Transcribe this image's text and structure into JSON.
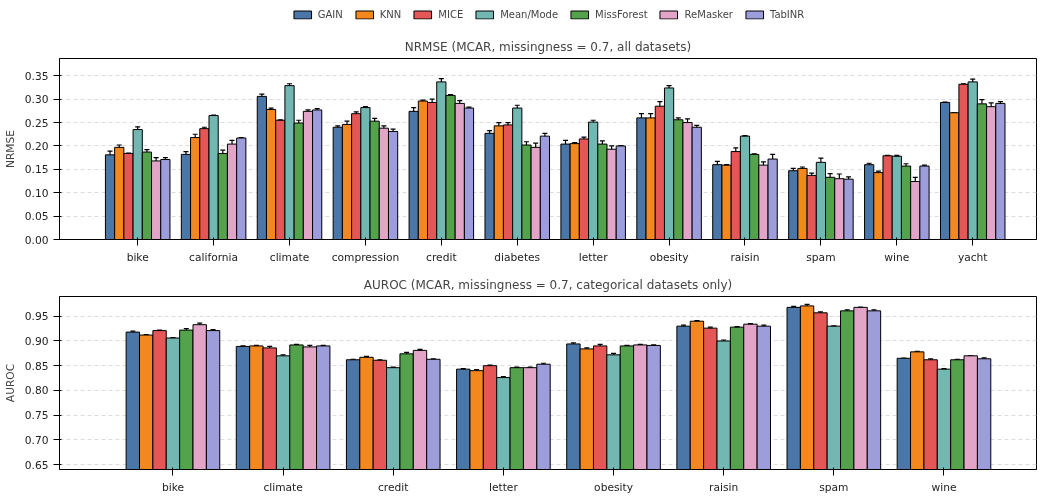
{
  "chart_data": [
    {
      "type": "bar",
      "title": "NRMSE (MCAR, missingness = 0.7, all datasets)",
      "ylabel": "NRMSE",
      "categories": [
        "bike",
        "california",
        "climate",
        "compression",
        "credit",
        "diabetes",
        "letter",
        "obesity",
        "raisin",
        "spam",
        "wine",
        "yacht"
      ],
      "ylim": [
        0,
        0.387
      ],
      "yticks": [
        {
          "value": 0,
          "label": "0.00"
        },
        {
          "value": 0.05,
          "label": "0.05"
        },
        {
          "value": 0.1,
          "label": "0.10"
        },
        {
          "value": 0.15,
          "label": "0.15"
        },
        {
          "value": 0.2,
          "label": "0.20"
        },
        {
          "value": 0.25,
          "label": "0.25"
        },
        {
          "value": 0.3,
          "label": "0.30"
        },
        {
          "value": 0.35,
          "label": "0.35"
        }
      ],
      "grid": "y",
      "legend": "top",
      "series": [
        {
          "name": "GAIN",
          "color": "#4a76a8",
          "values": [
            0.181,
            0.182,
            0.306,
            0.24,
            0.274,
            0.227,
            0.204,
            0.26,
            0.16,
            0.147,
            0.16,
            0.293
          ],
          "errors": [
            0.008,
            0.006,
            0.005,
            0.003,
            0.008,
            0.006,
            0.008,
            0.009,
            0.007,
            0.005,
            0.003,
            0.001
          ]
        },
        {
          "name": "KNN",
          "color": "#f5871f",
          "values": [
            0.197,
            0.218,
            0.278,
            0.246,
            0.296,
            0.243,
            0.205,
            0.26,
            0.159,
            0.152,
            0.143,
            0.271
          ],
          "errors": [
            0.005,
            0.007,
            0.003,
            0.007,
            0.002,
            0.007,
            0.002,
            0.009,
            0.001,
            0.003,
            0.003,
            0
          ]
        },
        {
          "name": "MICE",
          "color": "#e45756",
          "values": [
            0.184,
            0.237,
            0.255,
            0.269,
            0.293,
            0.245,
            0.215,
            0.285,
            0.188,
            0.137,
            0.179,
            0.332
          ],
          "errors": [
            0.001,
            0.003,
            0.001,
            0.004,
            0.007,
            0.005,
            0.004,
            0.01,
            0.008,
            0.005,
            0.001,
            0.001
          ]
        },
        {
          "name": "Mean/Mode",
          "color": "#72b7b2",
          "values": [
            0.235,
            0.265,
            0.329,
            0.282,
            0.337,
            0.281,
            0.251,
            0.324,
            0.221,
            0.165,
            0.178,
            0.337
          ],
          "errors": [
            0.006,
            0.001,
            0.004,
            0.002,
            0.007,
            0.006,
            0.004,
            0.005,
            0.001,
            0.009,
            0.002,
            0.006
          ]
        },
        {
          "name": "MissForest",
          "color": "#54a24b",
          "values": [
            0.187,
            0.184,
            0.249,
            0.253,
            0.308,
            0.202,
            0.204,
            0.256,
            0.182,
            0.133,
            0.157,
            0.29
          ],
          "errors": [
            0.005,
            0.007,
            0.006,
            0.006,
            0.002,
            0.007,
            0.007,
            0.004,
            0.001,
            0.008,
            0.005,
            0.009
          ]
        },
        {
          "name": "ReMasker",
          "color": "#e2a5c8",
          "values": [
            0.168,
            0.204,
            0.274,
            0.238,
            0.291,
            0.197,
            0.193,
            0.25,
            0.159,
            0.13,
            0.124,
            0.284
          ],
          "errors": [
            0.007,
            0.008,
            0.003,
            0.005,
            0.006,
            0.009,
            0.007,
            0.008,
            0.007,
            0.01,
            0.009,
            0.008
          ]
        },
        {
          "name": "TabINR",
          "color": "#9d9ddc",
          "values": [
            0.171,
            0.217,
            0.277,
            0.231,
            0.281,
            0.221,
            0.2,
            0.24,
            0.172,
            0.129,
            0.157,
            0.291
          ],
          "errors": [
            0.004,
            0.001,
            0.003,
            0.005,
            0.002,
            0.006,
            0.001,
            0.004,
            0.01,
            0.005,
            0.002,
            0.004
          ]
        }
      ]
    },
    {
      "type": "bar",
      "title": "AUROC (MCAR, missingness = 0.7, categorical datasets only)",
      "ylabel": "AUROC",
      "categories": [
        "bike",
        "climate",
        "credit",
        "letter",
        "obesity",
        "raisin",
        "spam",
        "wine"
      ],
      "ylim": [
        0.64,
        0.99
      ],
      "yticks": [
        0.65,
        {
          "value": 0.7,
          "label": "0.70"
        },
        0.75,
        {
          "value": 0.8,
          "label": "0.80"
        },
        0.85,
        {
          "value": 0.9,
          "label": "0.90"
        },
        0.95
      ],
      "grid": "y",
      "series": [
        {
          "color": "#4a76a8",
          "values": [
            0.918,
            0.889,
            0.862,
            0.843,
            0.894,
            0.93,
            0.968,
            0.865
          ],
          "errors": [
            0.002,
            0.001,
            0.001,
            0.001,
            0.002,
            0.002,
            0.002,
            0
          ]
        },
        {
          "color": "#f5871f",
          "values": [
            0.912,
            0.89,
            0.867,
            0.84,
            0.884,
            0.94,
            0.971,
            0.878
          ],
          "errors": [
            0.001,
            0.001,
            0.002,
            0.002,
            0.002,
            0.001,
            0.003,
            0.001
          ]
        },
        {
          "color": "#e45756",
          "values": [
            0.921,
            0.886,
            0.861,
            0.85,
            0.89,
            0.926,
            0.957,
            0.862
          ],
          "errors": [
            0.001,
            0.003,
            0.001,
            0.001,
            0.003,
            0.002,
            0.002,
            0.002
          ]
        },
        {
          "color": "#72b7b2",
          "values": [
            0.906,
            0.87,
            0.846,
            0.826,
            0.872,
            0.9,
            0.93,
            0.843
          ],
          "errors": [
            0.001,
            0.002,
            0.001,
            0.002,
            0.003,
            0.002,
            0,
            0.001
          ]
        },
        {
          "color": "#54a24b",
          "values": [
            0.922,
            0.892,
            0.874,
            0.846,
            0.89,
            0.928,
            0.961,
            0.862
          ],
          "errors": [
            0.003,
            0.001,
            0.003,
            0.001,
            0.001,
            0.001,
            0.002,
            0.001
          ]
        },
        {
          "color": "#e2a5c8",
          "values": [
            0.933,
            0.888,
            0.881,
            0.846,
            0.892,
            0.934,
            0.968,
            0.87
          ],
          "errors": [
            0.003,
            0.003,
            0.002,
            0.001,
            0.001,
            0.001,
            0,
            0
          ]
        },
        {
          "color": "#9d9ddc",
          "values": [
            0.921,
            0.89,
            0.863,
            0.853,
            0.891,
            0.93,
            0.961,
            0.864
          ],
          "errors": [
            0.002,
            0.001,
            0.001,
            0.002,
            0.001,
            0.002,
            0.002,
            0.002
          ]
        }
      ]
    }
  ]
}
